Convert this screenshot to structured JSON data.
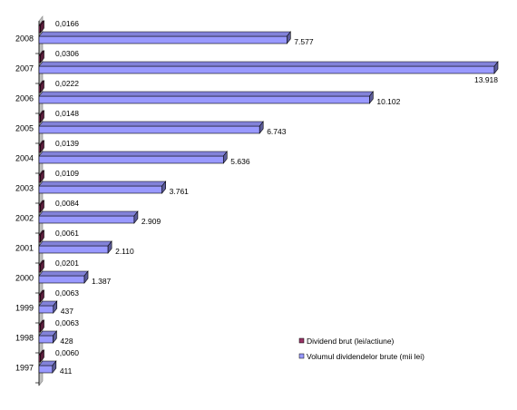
{
  "chart_data": {
    "type": "bar",
    "orientation": "horizontal",
    "three_d": true,
    "categories": [
      "1997",
      "1998",
      "1999",
      "2000",
      "2001",
      "2002",
      "2003",
      "2004",
      "2005",
      "2006",
      "2007",
      "2008"
    ],
    "series": [
      {
        "name": "Dividend brut (lei/actiune)",
        "values": [
          0.006,
          0.0063,
          0.0063,
          0.0201,
          0.0061,
          0.0084,
          0.0109,
          0.0139,
          0.0148,
          0.0222,
          0.0306,
          0.0166
        ],
        "labels": [
          "0,0060",
          "0,0063",
          "0,0063",
          "0,0201",
          "0,0061",
          "0,0084",
          "0,0109",
          "0,0139",
          "0,0148",
          "0,0222",
          "0,0306",
          "0,0166"
        ],
        "color": "#993366"
      },
      {
        "name": "Volumul dividendelor brute (mii lei)",
        "values": [
          411,
          428,
          437,
          1387,
          2110,
          2909,
          3761,
          5636,
          6743,
          10102,
          13918,
          7577
        ],
        "labels": [
          "411",
          "428",
          "437",
          "1.387",
          "2.110",
          "2.909",
          "3.761",
          "5.636",
          "6.743",
          "10.102",
          "13.918",
          "7.577"
        ],
        "color": "#9999FF"
      }
    ],
    "xlim": [
      0,
      13918
    ],
    "grid": false,
    "legend_position": "bottom-right"
  }
}
